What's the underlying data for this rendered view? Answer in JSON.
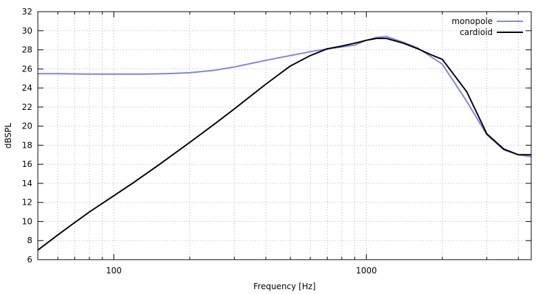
{
  "chart_data": {
    "type": "line",
    "xlabel": "Frequency [Hz]",
    "ylabel": "dBSPL",
    "xscale": "log",
    "xlim": [
      50,
      4500
    ],
    "ylim": [
      6,
      32
    ],
    "x_ticks": [
      {
        "value": 100,
        "label": "100"
      },
      {
        "value": 1000,
        "label": "1000"
      }
    ],
    "y_ticks": [
      6,
      8,
      10,
      12,
      14,
      16,
      18,
      20,
      22,
      24,
      26,
      28,
      30,
      32
    ],
    "grid": true,
    "legend_position": "top-right",
    "series": [
      {
        "name": "monopole",
        "color": "#7f7fee",
        "x": [
          50,
          60,
          80,
          100,
          130,
          160,
          200,
          250,
          300,
          400,
          500,
          600,
          700,
          800,
          900,
          1000,
          1100,
          1200,
          1400,
          1600,
          1800,
          2000,
          2500,
          3000,
          3500,
          4000,
          4500
        ],
        "y": [
          25.5,
          25.5,
          25.45,
          25.45,
          25.45,
          25.5,
          25.6,
          25.85,
          26.2,
          26.9,
          27.4,
          27.8,
          28.1,
          28.3,
          28.5,
          29.0,
          29.3,
          29.4,
          28.8,
          28.2,
          27.3,
          26.5,
          22.6,
          19.1,
          17.5,
          17.0,
          16.8
        ]
      },
      {
        "name": "cardioid",
        "color": "#000000",
        "x": [
          50,
          60,
          70,
          80,
          90,
          100,
          120,
          150,
          200,
          250,
          300,
          400,
          500,
          600,
          700,
          800,
          900,
          1000,
          1100,
          1200,
          1400,
          1600,
          1800,
          2000,
          2500,
          3000,
          3500,
          4000,
          4500
        ],
        "y": [
          7.0,
          8.6,
          9.9,
          11.0,
          11.9,
          12.7,
          14.1,
          15.9,
          18.3,
          20.2,
          21.8,
          24.4,
          26.3,
          27.4,
          28.1,
          28.4,
          28.7,
          29.0,
          29.2,
          29.2,
          28.7,
          28.1,
          27.5,
          27.0,
          23.6,
          19.2,
          17.6,
          17.0,
          17.0
        ]
      }
    ]
  }
}
